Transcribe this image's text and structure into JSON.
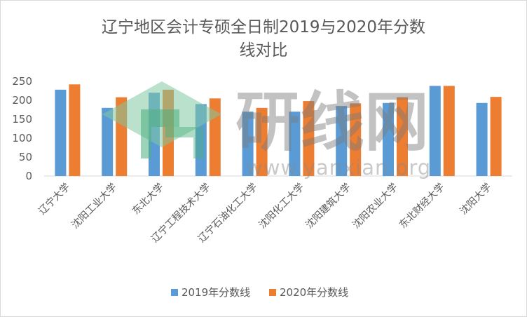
{
  "chart_data": {
    "type": "bar",
    "title": "辽宁地区会计专硕全日制2019与2020年分数线对比",
    "title_lines": [
      "辽宁地区会计专硕全日制2019与2020年分数",
      "线对比"
    ],
    "categories": [
      "辽宁大学",
      "沈阳工业大学",
      "东北大学",
      "辽宁工程技术大学",
      "辽宁石油化工大学",
      "沈阳化工大学",
      "沈阳建筑大学",
      "沈阳农业大学",
      "东北财经大学",
      "沈阳大学"
    ],
    "series": [
      {
        "name": "2019年分数线",
        "color": "#5b9bd5",
        "values": [
          228,
          180,
          220,
          190,
          170,
          170,
          185,
          193,
          238,
          193
        ]
      },
      {
        "name": "2020年分数线",
        "color": "#ed7d31",
        "values": [
          242,
          208,
          228,
          205,
          180,
          198,
          192,
          208,
          238,
          209
        ]
      }
    ],
    "ylim": [
      0,
      250
    ],
    "yticks": [
      "250",
      "200",
      "150",
      "100",
      "50",
      "0"
    ],
    "grid": false,
    "legend_position": "bottom"
  },
  "watermark": {
    "text": "研线网",
    "url": "www.yanxian.org",
    "colors": [
      "#4caf7d",
      "#7fc9a0",
      "#6b6b6b"
    ]
  }
}
